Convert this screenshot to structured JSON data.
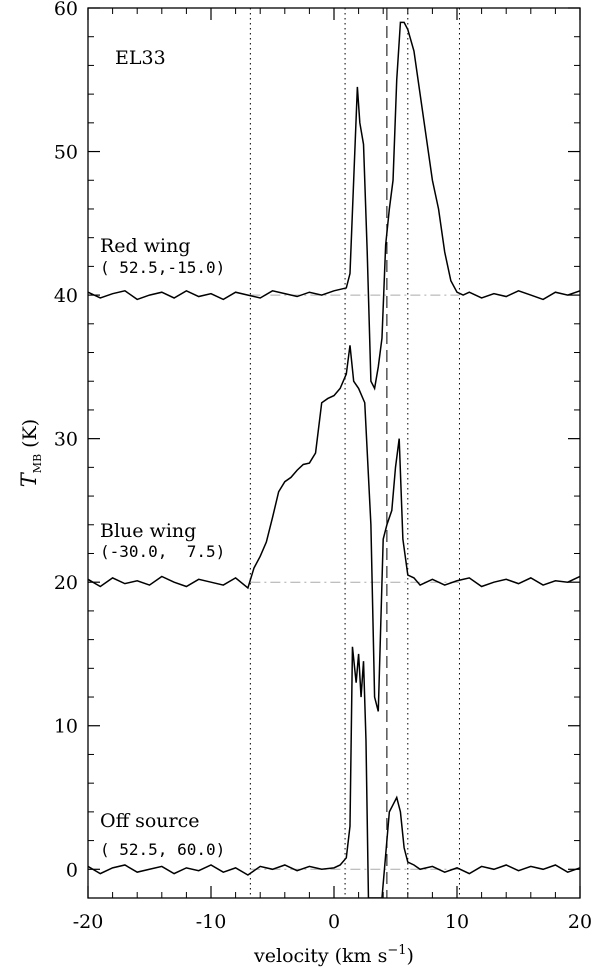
{
  "chart_data": {
    "type": "line",
    "xlim": [
      -20,
      20
    ],
    "ylim": [
      -2,
      60
    ],
    "xticks": [
      -20,
      -10,
      0,
      10,
      20
    ],
    "yticks": [
      0,
      10,
      20,
      30,
      40,
      50,
      60
    ],
    "minor_per_major": 5,
    "x_label": {
      "text": "velocity (km s",
      "superscript": "−1",
      "end": ")"
    },
    "y_label": {
      "symbol": "T",
      "subscript": "MB",
      "unit": "(K)"
    },
    "annotations": [
      "EL33",
      "Red wing",
      "( 52.5,-15.0)",
      "Blue wing",
      "(-30.0,  7.5)",
      "Off source",
      "( 52.5, 60.0)"
    ],
    "reference_lines": {
      "dotted_x": [
        -6.8,
        0.9,
        6.0,
        10.2
      ],
      "dashed_x": [
        4.3
      ],
      "dashdot_y": [
        0,
        20,
        40
      ],
      "dashdot_xlim": [
        -6.8,
        10.2
      ]
    },
    "series": [
      {
        "color": "#000000",
        "x": [
          -20,
          -19,
          -18,
          -17,
          -16,
          -15,
          -14,
          -13,
          -12,
          -11,
          -10,
          -9,
          -8,
          -7,
          -6,
          -5,
          -4,
          -3,
          -2,
          -1,
          0,
          0.5,
          1.0,
          1.3,
          1.5,
          1.8,
          2.0,
          2.2,
          2.4,
          2.6,
          2.8,
          3.0,
          3.5,
          3.9,
          4.2,
          4.5,
          4.8,
          5.1,
          5.4,
          5.7,
          6.0,
          6.5,
          7,
          8,
          9,
          10,
          11,
          12,
          13,
          14,
          15,
          16,
          17,
          18,
          19,
          20
        ],
        "values": [
          0.2,
          -0.3,
          0.1,
          0.3,
          -0.2,
          0,
          0.2,
          -0.3,
          0.1,
          -0.1,
          0.3,
          -0.2,
          0.1,
          -0.4,
          0.2,
          0,
          0.3,
          -0.1,
          0.2,
          0,
          0.1,
          0.3,
          0.8,
          3,
          15.5,
          13,
          15,
          12,
          14.5,
          9,
          -2,
          -2,
          -2,
          -2,
          1,
          4,
          4.5,
          5,
          4,
          1.5,
          0.5,
          0.3,
          0,
          0.2,
          -0.2,
          0.1,
          -0.3,
          0.2,
          0,
          0.3,
          -0.1,
          0.2,
          0,
          0.3,
          -0.2,
          0.1
        ]
      },
      {
        "color": "#000000",
        "x": [
          -20,
          -19,
          -18,
          -17,
          -16,
          -15,
          -14,
          -13,
          -12,
          -11,
          -10,
          -9,
          -8,
          -7,
          -6.5,
          -6,
          -5.5,
          -5,
          -4.5,
          -4,
          -3.5,
          -3,
          -2.5,
          -2,
          -1.5,
          -1,
          -0.5,
          0,
          0.5,
          1.0,
          1.3,
          1.6,
          2.0,
          2.5,
          3.0,
          3.3,
          3.6,
          4.0,
          4.3,
          4.7,
          5.0,
          5.3,
          5.6,
          6.0,
          6.5,
          7,
          8,
          9,
          10,
          11,
          12,
          13,
          14,
          15,
          16,
          17,
          18,
          19,
          20
        ],
        "values": [
          20.2,
          19.7,
          20.3,
          19.9,
          20.1,
          19.8,
          20.4,
          20,
          19.7,
          20.2,
          20,
          19.8,
          20.3,
          19.6,
          21,
          21.8,
          22.8,
          24.5,
          26.3,
          27,
          27.3,
          27.8,
          28.2,
          28.3,
          29,
          32.5,
          32.8,
          33,
          33.5,
          34.5,
          36.5,
          34,
          33.5,
          32.5,
          24,
          12,
          11,
          23,
          24,
          25,
          28,
          30,
          23,
          20.5,
          20.3,
          19.8,
          20.2,
          19.8,
          20.1,
          20.3,
          19.7,
          20,
          20.2,
          19.9,
          20.3,
          19.8,
          20.1,
          20,
          20.4
        ]
      },
      {
        "color": "#000000",
        "x": [
          -20,
          -19,
          -18,
          -17,
          -16,
          -15,
          -14,
          -13,
          -12,
          -11,
          -10,
          -9,
          -8,
          -7,
          -6,
          -5,
          -4,
          -3,
          -2,
          -1,
          0,
          1,
          1.3,
          1.6,
          1.9,
          2.1,
          2.4,
          2.7,
          3.0,
          3.3,
          3.6,
          3.9,
          4.2,
          4.5,
          4.8,
          5.1,
          5.4,
          5.7,
          6.0,
          6.5,
          7.0,
          7.5,
          8.0,
          8.5,
          9.0,
          9.5,
          10.0,
          10.5,
          11,
          12,
          13,
          14,
          15,
          16,
          17,
          18,
          19,
          20
        ],
        "values": [
          40.2,
          39.8,
          40.1,
          40.3,
          39.7,
          40,
          40.2,
          39.8,
          40.3,
          39.9,
          40.1,
          39.7,
          40.2,
          40,
          39.8,
          40.3,
          40.1,
          39.9,
          40.2,
          40,
          40.3,
          40.5,
          41.5,
          48,
          54.5,
          52,
          50.5,
          43,
          34,
          33.5,
          35,
          37,
          43.5,
          46,
          48,
          55,
          59,
          59,
          58.5,
          57,
          54,
          51,
          48,
          46,
          43,
          41,
          40.2,
          40,
          40.2,
          39.8,
          40.1,
          39.9,
          40.3,
          40,
          39.7,
          40.2,
          40,
          40.3
        ]
      }
    ]
  }
}
